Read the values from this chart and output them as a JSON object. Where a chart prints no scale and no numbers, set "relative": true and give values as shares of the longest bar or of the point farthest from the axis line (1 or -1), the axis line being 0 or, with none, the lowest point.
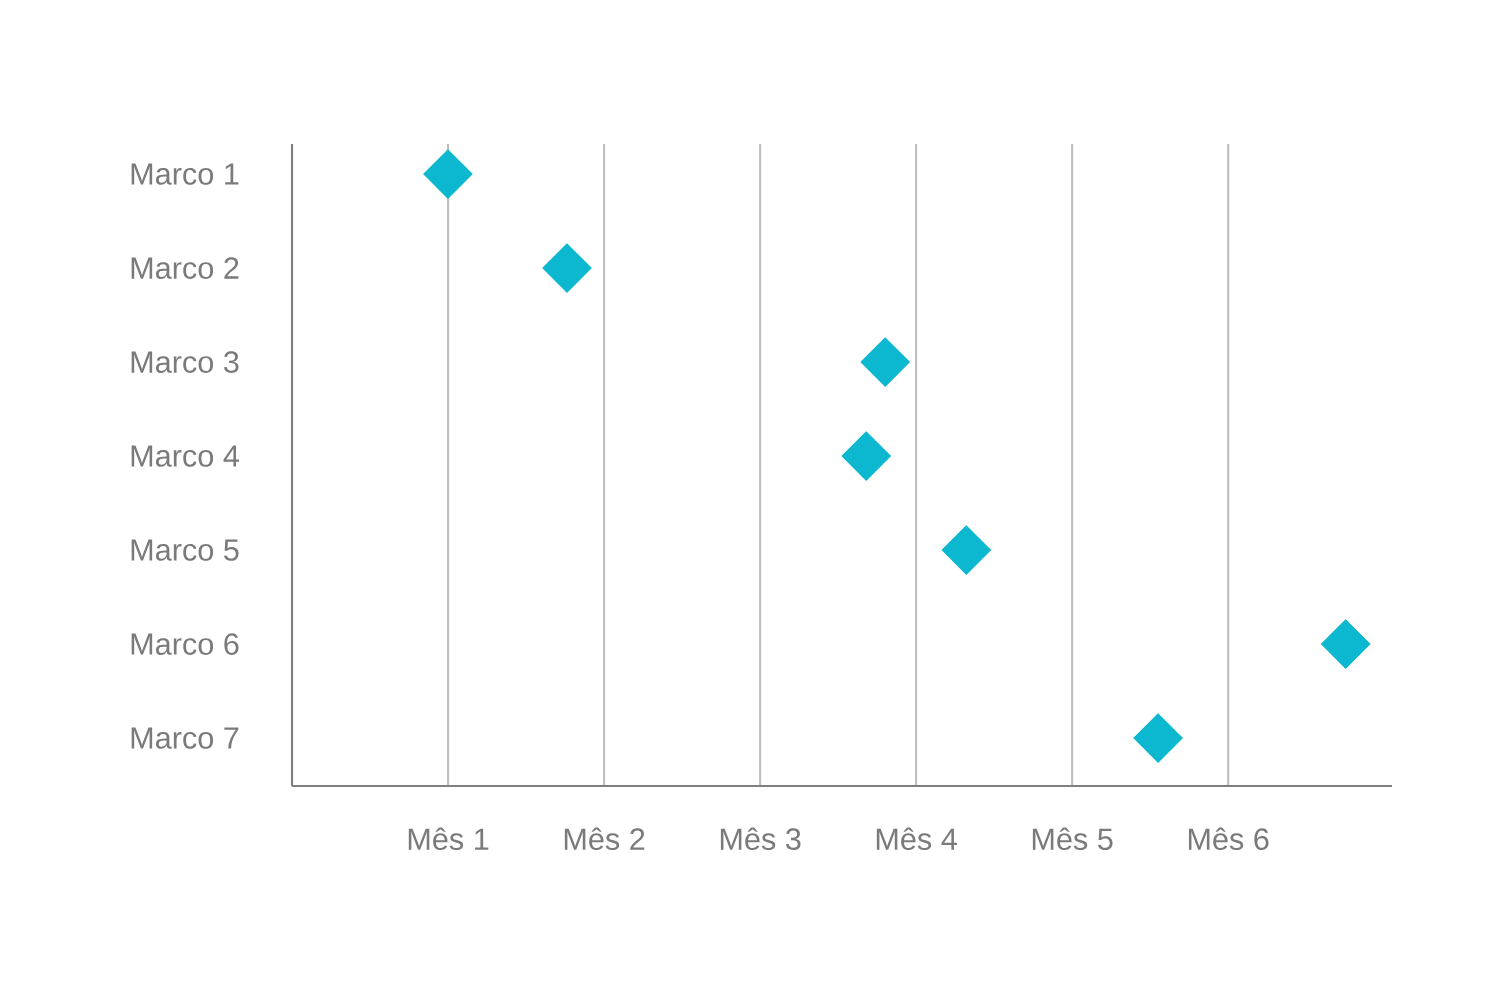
{
  "chart_data": {
    "type": "scatter",
    "orientation": "horizontal",
    "relative": true,
    "categories": [
      "Marco 1",
      "Marco 2",
      "Marco 3",
      "Marco 4",
      "Marco 5",
      "Marco 6",
      "Marco 7"
    ],
    "values": [
      0.148,
      0.261,
      0.563,
      0.545,
      0.64,
      1,
      0.822
    ],
    "color": "#0bb8cf",
    "marker": "diamond",
    "grid": "x",
    "annotations": [
      "Mês 1",
      "Mês 2",
      "Mês 3",
      "Mês 4",
      "Mês 5",
      "Mês 6"
    ]
  }
}
